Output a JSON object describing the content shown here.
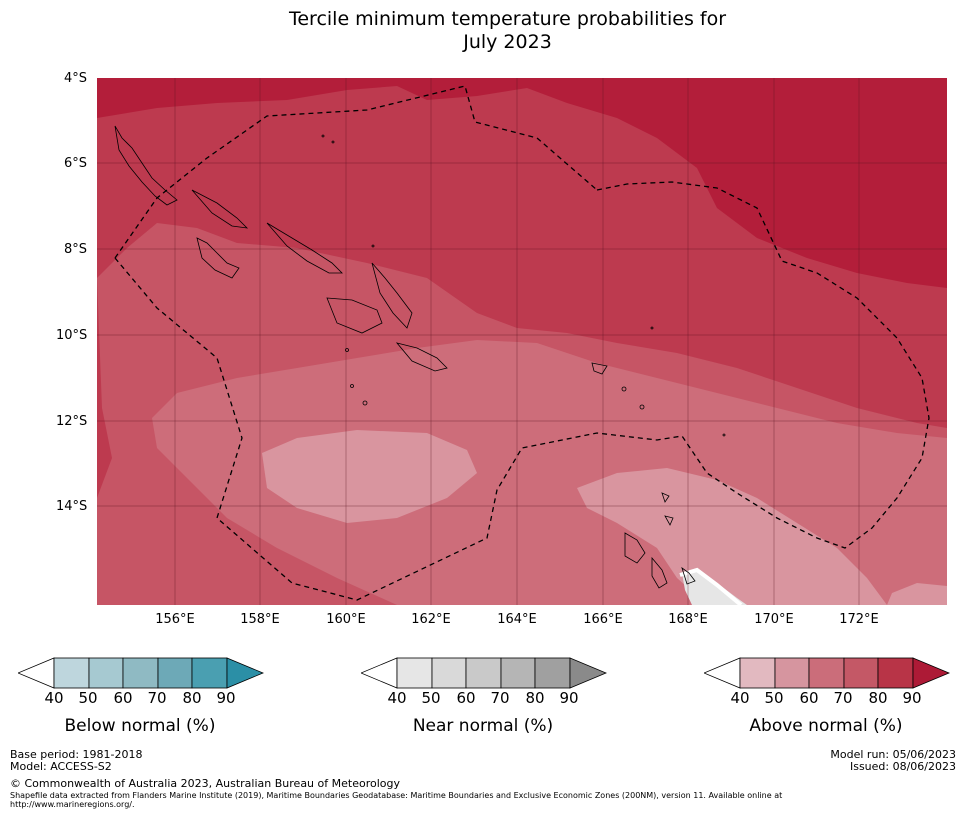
{
  "title_line1": "Tercile minimum temperature probabilities for",
  "title_line2": "July 2023",
  "lat_labels": [
    "4°S",
    "6°S",
    "8°S",
    "10°S",
    "12°S",
    "14°S"
  ],
  "lon_labels": [
    "156°E",
    "158°E",
    "160°E",
    "162°E",
    "164°E",
    "166°E",
    "168°E",
    "170°E",
    "172°E"
  ],
  "colorbars": [
    {
      "name": "Below normal (%)",
      "ticks": [
        "40",
        "50",
        "60",
        "70",
        "80",
        "90"
      ],
      "colors": [
        "#ffffff",
        "#bed6dd",
        "#a6c9d1",
        "#8fbac3",
        "#6da9b7",
        "#4a9fb1",
        "#2b8fa6"
      ]
    },
    {
      "name": "Near normal (%)",
      "ticks": [
        "40",
        "50",
        "60",
        "70",
        "80",
        "90"
      ],
      "colors": [
        "#ffffff",
        "#e6e6e6",
        "#d9d9d9",
        "#c9c9c9",
        "#b5b5b5",
        "#a0a0a0",
        "#8a8a8a"
      ]
    },
    {
      "name": "Above normal (%)",
      "ticks": [
        "40",
        "50",
        "60",
        "70",
        "80",
        "90"
      ],
      "colors": [
        "#ffffff",
        "#e2b9c0",
        "#d6959f",
        "#cb6d7a",
        "#c45866",
        "#b83447",
        "#ad1a36"
      ]
    }
  ],
  "map_colors": {
    "above_80_90": "#b31e3a",
    "above_70_80": "#bd3a4f",
    "above_60_70": "#c65565",
    "above_50_60": "#cd6d7a",
    "above_40_50": "#d9959f",
    "near_40_50": "#e6e6e6"
  },
  "footer": {
    "base_period": "Base period: 1981-2018",
    "model": "Model: ACCESS-S2",
    "copyright": "© Commonwealth of Australia 2023, Australian Bureau of Meteorology",
    "shapefile_line1": "Shapefile data extracted from Flanders Marine Institute (2019), Maritime Boundaries Geodatabase: Maritime Boundaries and Exclusive Economic Zones (200NM), version 11. Available online at",
    "shapefile_line2": "http://www.marineregions.org/.",
    "model_run": "Model run: 05/06/2023",
    "issued": "Issued: 08/06/2023"
  }
}
